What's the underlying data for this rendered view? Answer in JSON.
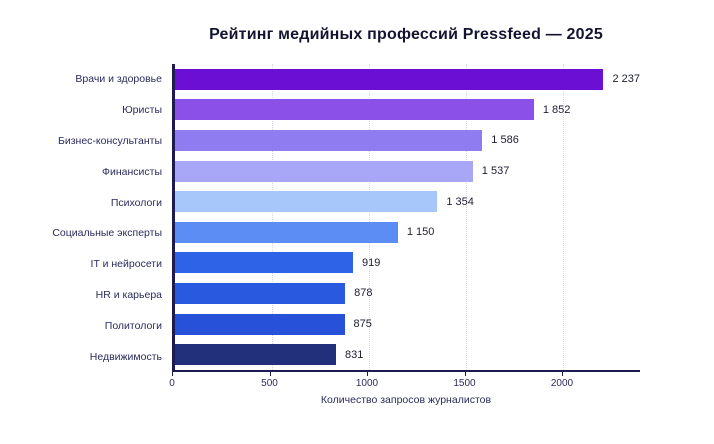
{
  "chart_data": {
    "type": "bar",
    "orientation": "horizontal",
    "title": "Рейтинг медийных профессий Pressfeed — 2025",
    "xlabel": "Количество запросов журналистов",
    "categories": [
      "Врачи и здоровье",
      "Юристы",
      "Бизнес-консультанты",
      "Финансисты",
      "Психологи",
      "Социальные эксперты",
      "IT и нейросети",
      "HR и карьера",
      "Политологи",
      "Недвижимость"
    ],
    "values": [
      2237,
      1852,
      1586,
      1537,
      1354,
      1150,
      919,
      878,
      875,
      831
    ],
    "value_labels": [
      "2 237",
      "1 852",
      "1 586",
      "1 537",
      "1 354",
      "1 150",
      "919",
      "878",
      "875",
      "831"
    ],
    "xlim": [
      0,
      2400
    ],
    "xticks": [
      0,
      500,
      1000,
      1500,
      2000
    ],
    "xtick_labels": [
      "0",
      "500",
      "1000",
      "1500",
      "2000"
    ],
    "bar_colors": [
      "#6c0fd4",
      "#8a50e8",
      "#8f7cf0",
      "#a8a7f7",
      "#a7c6fa",
      "#5c8df5",
      "#2e63e8",
      "#2959df",
      "#2751d8",
      "#22307c"
    ],
    "grid": "vertical-dotted",
    "legend": "none",
    "colors": {
      "axis": "#1c1c52",
      "title": "#141432",
      "tick_label": "#2b2b5c",
      "value_label": "#1d1d33",
      "background": "#ffffff"
    }
  }
}
